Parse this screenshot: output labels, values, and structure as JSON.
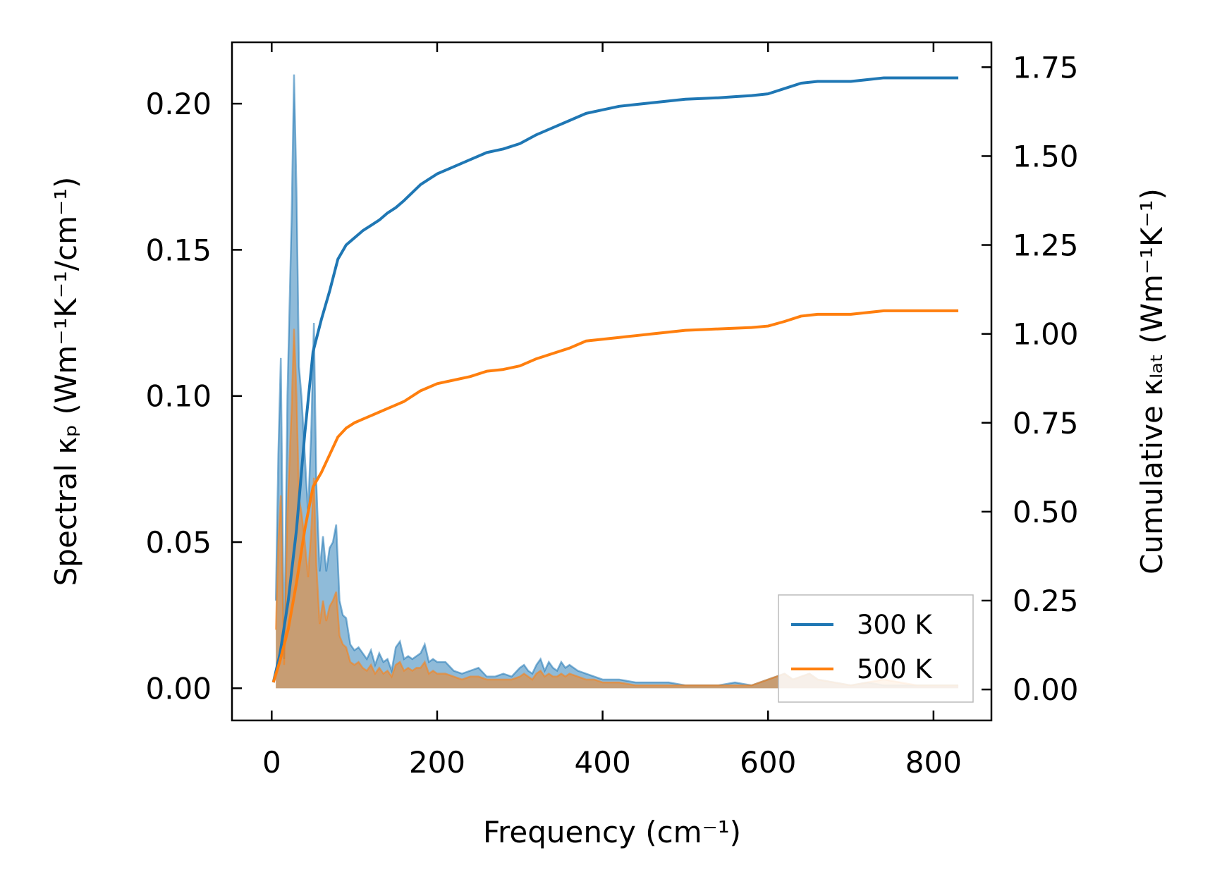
{
  "chart_data": {
    "type": "line",
    "xlabel": "Frequency (cm⁻¹)",
    "ylabel_left": "Spectral κₚ (Wm⁻¹K⁻¹/cm⁻¹)",
    "ylabel_right": "Cumulative κₗₐₜ (Wm⁻¹K⁻¹)",
    "xlim": [
      -48,
      870
    ],
    "ylim_left": [
      -0.011,
      0.221
    ],
    "ylim_right": [
      -0.087,
      1.82
    ],
    "x_ticks": [
      "0",
      "200",
      "400",
      "600",
      "800"
    ],
    "x_tick_values": [
      0,
      200,
      400,
      600,
      800
    ],
    "y_left_ticks": [
      "0.00",
      "0.05",
      "0.10",
      "0.15",
      "0.20"
    ],
    "y_left_tick_values": [
      0,
      0.05,
      0.1,
      0.15,
      0.2
    ],
    "y_right_ticks": [
      "0.00",
      "0.25",
      "0.50",
      "0.75",
      "1.00",
      "1.25",
      "1.50",
      "1.75"
    ],
    "y_right_tick_values": [
      0,
      0.25,
      0.5,
      0.75,
      1.0,
      1.25,
      1.5,
      1.75
    ],
    "grid": false,
    "legend": {
      "placement": "lower-right",
      "entries": [
        "300 K",
        "500 K"
      ]
    },
    "colors": {
      "300 K": "#1f77b4",
      "500 K": "#ff7f0e"
    },
    "series": [
      {
        "name": "300 K",
        "kind": "cumulative",
        "axis": "right",
        "x": [
          2,
          10,
          20,
          30,
          40,
          50,
          60,
          70,
          80,
          90,
          100,
          110,
          120,
          130,
          140,
          150,
          160,
          180,
          200,
          220,
          240,
          260,
          280,
          300,
          320,
          340,
          360,
          380,
          400,
          420,
          440,
          460,
          480,
          500,
          520,
          540,
          560,
          580,
          600,
          620,
          640,
          660,
          680,
          700,
          720,
          740,
          760,
          780,
          800,
          830
        ],
        "y": [
          0.02,
          0.1,
          0.25,
          0.45,
          0.72,
          0.95,
          1.04,
          1.12,
          1.21,
          1.25,
          1.27,
          1.29,
          1.305,
          1.32,
          1.34,
          1.355,
          1.375,
          1.42,
          1.45,
          1.47,
          1.49,
          1.51,
          1.52,
          1.535,
          1.56,
          1.58,
          1.6,
          1.62,
          1.63,
          1.64,
          1.645,
          1.65,
          1.655,
          1.66,
          1.662,
          1.664,
          1.667,
          1.67,
          1.675,
          1.69,
          1.705,
          1.71,
          1.71,
          1.71,
          1.715,
          1.72,
          1.72,
          1.72,
          1.72,
          1.72
        ]
      },
      {
        "name": "500 K",
        "kind": "cumulative",
        "axis": "right",
        "x": [
          2,
          10,
          20,
          30,
          40,
          50,
          60,
          70,
          80,
          90,
          100,
          110,
          120,
          130,
          140,
          150,
          160,
          180,
          200,
          220,
          240,
          260,
          280,
          300,
          320,
          340,
          360,
          380,
          400,
          420,
          440,
          460,
          480,
          500,
          520,
          540,
          560,
          580,
          600,
          620,
          640,
          660,
          680,
          700,
          720,
          740,
          760,
          780,
          800,
          830
        ],
        "y": [
          0.02,
          0.08,
          0.17,
          0.3,
          0.45,
          0.57,
          0.61,
          0.66,
          0.71,
          0.735,
          0.75,
          0.76,
          0.77,
          0.78,
          0.79,
          0.8,
          0.81,
          0.84,
          0.86,
          0.87,
          0.88,
          0.895,
          0.9,
          0.91,
          0.93,
          0.945,
          0.96,
          0.98,
          0.985,
          0.99,
          0.995,
          1.0,
          1.005,
          1.01,
          1.012,
          1.014,
          1.016,
          1.018,
          1.022,
          1.035,
          1.05,
          1.055,
          1.055,
          1.055,
          1.06,
          1.065,
          1.065,
          1.065,
          1.065,
          1.065
        ]
      },
      {
        "name": "300 K",
        "kind": "spectral",
        "axis": "left",
        "x": [
          5,
          8,
          11,
          15,
          19,
          24,
          27,
          30,
          33,
          36,
          40,
          44,
          48,
          51,
          54,
          58,
          62,
          66,
          70,
          74,
          78,
          82,
          86,
          90,
          95,
          100,
          105,
          110,
          115,
          120,
          125,
          130,
          135,
          140,
          145,
          150,
          155,
          160,
          165,
          170,
          175,
          180,
          185,
          190,
          195,
          200,
          210,
          220,
          230,
          240,
          250,
          260,
          270,
          280,
          290,
          300,
          305,
          310,
          315,
          320,
          325,
          330,
          335,
          340,
          345,
          350,
          355,
          360,
          370,
          380,
          390,
          400,
          420,
          440,
          460,
          480,
          500,
          520,
          540,
          560,
          580,
          600,
          610,
          620,
          630,
          640,
          650,
          660,
          680,
          700,
          720,
          740,
          760,
          780,
          800,
          830
        ],
        "y": [
          0.03,
          0.08,
          0.113,
          0.01,
          0.1,
          0.16,
          0.21,
          0.17,
          0.11,
          0.1,
          0.08,
          0.06,
          0.09,
          0.125,
          0.07,
          0.04,
          0.052,
          0.04,
          0.048,
          0.05,
          0.056,
          0.03,
          0.025,
          0.024,
          0.015,
          0.013,
          0.014,
          0.012,
          0.01,
          0.013,
          0.008,
          0.012,
          0.009,
          0.01,
          0.006,
          0.014,
          0.016,
          0.01,
          0.011,
          0.01,
          0.011,
          0.012,
          0.015,
          0.009,
          0.01,
          0.009,
          0.009,
          0.006,
          0.005,
          0.006,
          0.007,
          0.004,
          0.004,
          0.005,
          0.004,
          0.007,
          0.008,
          0.006,
          0.005,
          0.008,
          0.01,
          0.006,
          0.009,
          0.007,
          0.006,
          0.009,
          0.007,
          0.008,
          0.006,
          0.005,
          0.004,
          0.003,
          0.003,
          0.002,
          0.002,
          0.002,
          0.001,
          0.001,
          0.001,
          0.002,
          0.001,
          0.003,
          0.004,
          0.005,
          0.003,
          0.004,
          0.005,
          0.003,
          0.002,
          0.001,
          0.002,
          0.001,
          0.001,
          0.001,
          0.001,
          0.001
        ]
      },
      {
        "name": "500 K",
        "kind": "spectral",
        "axis": "left",
        "x": [
          5,
          8,
          11,
          15,
          19,
          24,
          27,
          30,
          33,
          36,
          40,
          44,
          48,
          51,
          54,
          58,
          62,
          66,
          70,
          74,
          78,
          82,
          86,
          90,
          95,
          100,
          105,
          110,
          115,
          120,
          125,
          130,
          135,
          140,
          145,
          150,
          155,
          160,
          165,
          170,
          175,
          180,
          185,
          190,
          195,
          200,
          210,
          220,
          230,
          240,
          250,
          260,
          270,
          280,
          290,
          300,
          305,
          310,
          315,
          320,
          325,
          330,
          335,
          340,
          345,
          350,
          355,
          360,
          370,
          380,
          390,
          400,
          420,
          440,
          460,
          480,
          500,
          520,
          540,
          560,
          580,
          600,
          610,
          620,
          630,
          640,
          650,
          660,
          680,
          700,
          720,
          740,
          760,
          780,
          800,
          830
        ],
        "y": [
          0.02,
          0.05,
          0.066,
          0.008,
          0.06,
          0.095,
          0.123,
          0.1,
          0.065,
          0.06,
          0.05,
          0.038,
          0.055,
          0.072,
          0.042,
          0.022,
          0.03,
          0.023,
          0.028,
          0.03,
          0.033,
          0.018,
          0.015,
          0.014,
          0.009,
          0.008,
          0.009,
          0.007,
          0.006,
          0.008,
          0.005,
          0.007,
          0.005,
          0.006,
          0.004,
          0.008,
          0.009,
          0.006,
          0.007,
          0.006,
          0.007,
          0.007,
          0.009,
          0.005,
          0.006,
          0.005,
          0.005,
          0.004,
          0.003,
          0.004,
          0.004,
          0.003,
          0.003,
          0.003,
          0.003,
          0.004,
          0.005,
          0.004,
          0.003,
          0.005,
          0.006,
          0.004,
          0.005,
          0.004,
          0.004,
          0.005,
          0.004,
          0.005,
          0.004,
          0.003,
          0.003,
          0.002,
          0.002,
          0.001,
          0.001,
          0.001,
          0.001,
          0.001,
          0.001,
          0.001,
          0.001,
          0.003,
          0.004,
          0.005,
          0.003,
          0.004,
          0.005,
          0.003,
          0.002,
          0.001,
          0.002,
          0.003,
          0.002,
          0.001,
          0.001,
          0.001
        ]
      }
    ]
  }
}
